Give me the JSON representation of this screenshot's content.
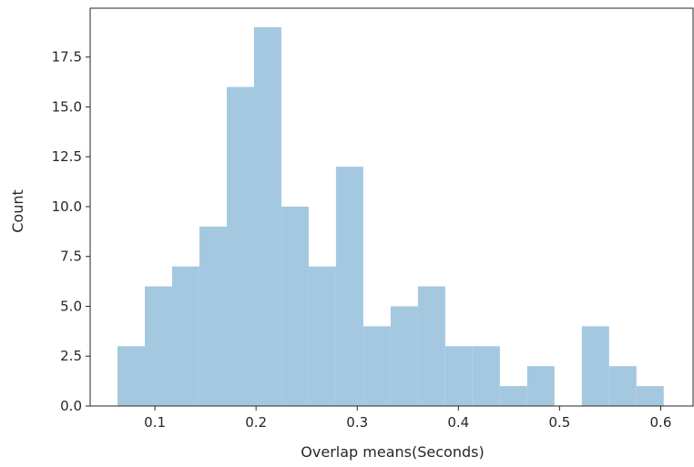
{
  "chart_data": {
    "type": "bar",
    "subtype": "histogram",
    "title": "",
    "xlabel": "Overlap means(Seconds)",
    "ylabel": "Count",
    "xlim": [
      0.036,
      0.632
    ],
    "ylim": [
      0,
      19.95
    ],
    "x_ticks": [
      0.1,
      0.2,
      0.3,
      0.4,
      0.5,
      0.6
    ],
    "x_tick_labels": [
      "0.1",
      "0.2",
      "0.3",
      "0.4",
      "0.5",
      "0.6"
    ],
    "y_ticks": [
      0,
      2.5,
      5,
      7.5,
      10,
      12.5,
      15,
      17.5
    ],
    "y_tick_labels": [
      "0.0",
      "2.5",
      "5.0",
      "7.5",
      "10.0",
      "12.5",
      "15.0",
      "17.5"
    ],
    "bin_edges": [
      0.063,
      0.09,
      0.117,
      0.144,
      0.171,
      0.198,
      0.225,
      0.252,
      0.279,
      0.306,
      0.333,
      0.36,
      0.387,
      0.414,
      0.441,
      0.468,
      0.495,
      0.522,
      0.549,
      0.576,
      0.603
    ],
    "values": [
      3,
      6,
      7,
      9,
      16,
      19,
      10,
      7,
      12,
      4,
      5,
      6,
      3,
      3,
      1,
      2,
      0,
      4,
      2,
      1
    ],
    "grid": false,
    "legend": "none",
    "bar_color": "#a5c8e1",
    "axis_color": "#262626"
  }
}
